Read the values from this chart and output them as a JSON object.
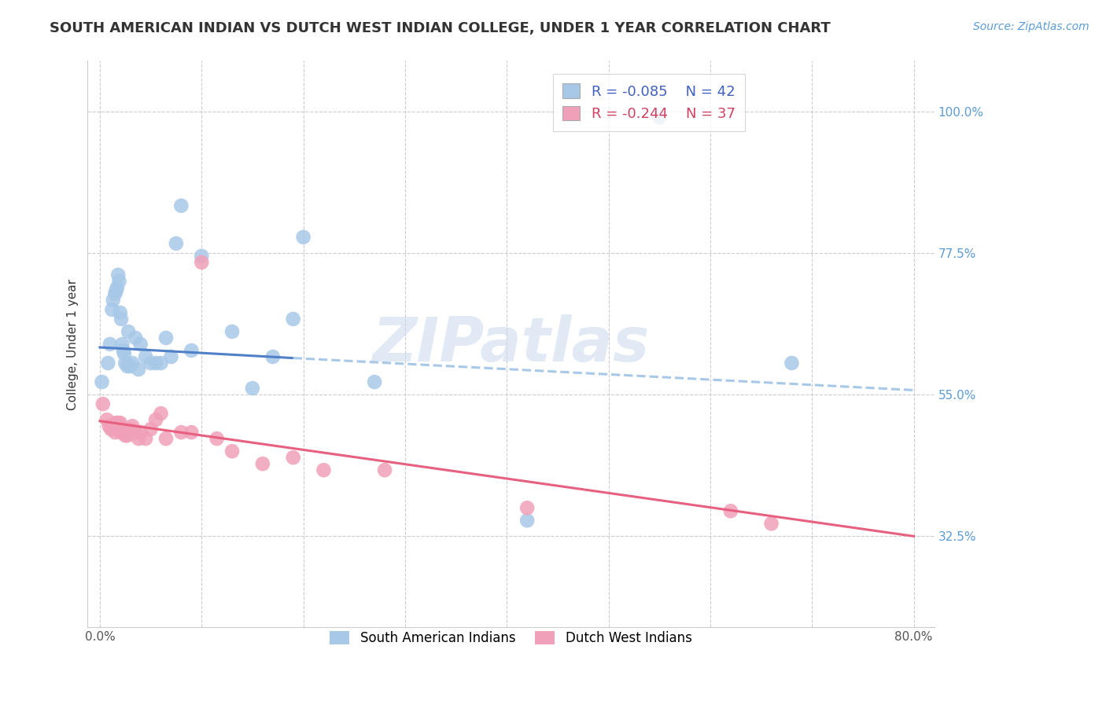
{
  "title": "SOUTH AMERICAN INDIAN VS DUTCH WEST INDIAN COLLEGE, UNDER 1 YEAR CORRELATION CHART",
  "source": "Source: ZipAtlas.com",
  "ylabel": "College, Under 1 year",
  "ytick_positions": [
    0.325,
    0.55,
    0.775,
    1.0
  ],
  "ytick_labels": [
    "32.5%",
    "55.0%",
    "77.5%",
    "100.0%"
  ],
  "xtick_positions": [
    0.0,
    0.1,
    0.2,
    0.3,
    0.4,
    0.5,
    0.6,
    0.7,
    0.8
  ],
  "xtick_labels": [
    "0.0%",
    "",
    "",
    "",
    "",
    "",
    "",
    "",
    "80.0%"
  ],
  "xlim": [
    -0.012,
    0.82
  ],
  "ylim": [
    0.18,
    1.08
  ],
  "legend_r1": "R = -0.085",
  "legend_n1": "N = 42",
  "legend_r2": "R = -0.244",
  "legend_n2": "N = 37",
  "blue_color": "#A8C8E8",
  "pink_color": "#F0A0B8",
  "line_blue_solid": "#5080C8",
  "line_blue_dash": "#A8C8E8",
  "line_pink": "#E86080",
  "watermark": "ZIPatlas",
  "blue_x": [
    0.002,
    0.008,
    0.01,
    0.012,
    0.013,
    0.015,
    0.016,
    0.017,
    0.018,
    0.019,
    0.02,
    0.021,
    0.022,
    0.023,
    0.024,
    0.025,
    0.027,
    0.028,
    0.03,
    0.032,
    0.035,
    0.038,
    0.04,
    0.045,
    0.05,
    0.055,
    0.06,
    0.065,
    0.07,
    0.075,
    0.08,
    0.09,
    0.1,
    0.13,
    0.15,
    0.17,
    0.19,
    0.2,
    0.27,
    0.42,
    0.55,
    0.68
  ],
  "blue_y": [
    0.57,
    0.6,
    0.63,
    0.685,
    0.7,
    0.71,
    0.715,
    0.72,
    0.74,
    0.73,
    0.68,
    0.67,
    0.63,
    0.62,
    0.615,
    0.6,
    0.595,
    0.65,
    0.595,
    0.6,
    0.64,
    0.59,
    0.63,
    0.61,
    0.6,
    0.6,
    0.6,
    0.64,
    0.61,
    0.79,
    0.85,
    0.62,
    0.77,
    0.65,
    0.56,
    0.61,
    0.67,
    0.8,
    0.57,
    0.35,
    0.99,
    0.6
  ],
  "pink_x": [
    0.003,
    0.007,
    0.009,
    0.011,
    0.013,
    0.015,
    0.016,
    0.017,
    0.018,
    0.02,
    0.021,
    0.022,
    0.024,
    0.025,
    0.027,
    0.03,
    0.032,
    0.035,
    0.038,
    0.04,
    0.045,
    0.05,
    0.055,
    0.06,
    0.065,
    0.08,
    0.09,
    0.1,
    0.115,
    0.13,
    0.16,
    0.19,
    0.22,
    0.28,
    0.42,
    0.62,
    0.66
  ],
  "pink_y": [
    0.535,
    0.51,
    0.5,
    0.495,
    0.5,
    0.49,
    0.505,
    0.505,
    0.505,
    0.505,
    0.49,
    0.495,
    0.495,
    0.485,
    0.485,
    0.495,
    0.5,
    0.49,
    0.48,
    0.49,
    0.48,
    0.495,
    0.51,
    0.52,
    0.48,
    0.49,
    0.49,
    0.76,
    0.48,
    0.46,
    0.44,
    0.45,
    0.43,
    0.43,
    0.37,
    0.365,
    0.345
  ],
  "blue_trend_x0": 0.0,
  "blue_trend_x_break": 0.19,
  "blue_trend_x1": 0.8,
  "blue_trend_y0": 0.625,
  "blue_trend_y_break": 0.608,
  "blue_trend_y1": 0.557,
  "pink_trend_x0": 0.0,
  "pink_trend_x1": 0.8,
  "pink_trend_y0": 0.508,
  "pink_trend_y1": 0.325,
  "bg_color": "#FFFFFF",
  "grid_color": "#CCCCCC",
  "title_fontsize": 13,
  "axis_label_fontsize": 11,
  "tick_fontsize": 11,
  "source_fontsize": 10,
  "legend_fontsize": 13
}
